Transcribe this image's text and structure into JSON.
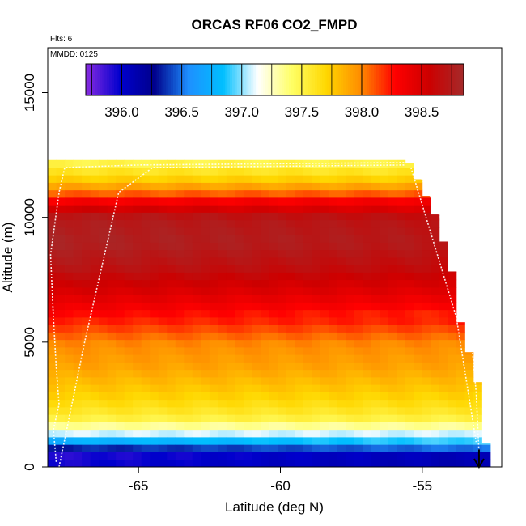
{
  "chart_data": {
    "type": "heatmap",
    "title": "ORCAS RF06 CO2_FMPD",
    "annotations": {
      "flights": "Flts: 6",
      "date": "MMDD: 0125"
    },
    "xlabel": "Latitude (deg N)",
    "ylabel": "Altitude (m)",
    "xlim": [
      -68.2,
      -52.2
    ],
    "ylim": [
      0,
      16800
    ],
    "x_ticks": [
      -65,
      -60,
      -55
    ],
    "x_tick_labels": [
      "-65",
      "-60",
      "-55"
    ],
    "y_ticks": [
      0,
      5000,
      10000,
      15000
    ],
    "y_tick_labels": [
      "0",
      "5000",
      "10000",
      "15000"
    ],
    "colorbar": {
      "range": [
        395.7,
        398.85
      ],
      "ticks": [
        396.0,
        396.5,
        397.0,
        397.5,
        398.0,
        398.5
      ],
      "tick_labels": [
        "396.0",
        "396.5",
        "397.0",
        "397.5",
        "398.0",
        "398.5"
      ],
      "colors": [
        "#8a2be2",
        "#0000cd",
        "#00008b",
        "#1e90ff",
        "#00bfff",
        "#ffffff",
        "#ffff66",
        "#ffd700",
        "#ff8c00",
        "#ff0000",
        "#cc0000",
        "#a52a2a"
      ],
      "placement": "top-inside"
    },
    "grid": false,
    "altitude_profile": [
      {
        "z": 0,
        "value": 396.0
      },
      {
        "z": 400,
        "value": 395.85
      },
      {
        "z": 800,
        "value": 396.4
      },
      {
        "z": 1200,
        "value": 396.95
      },
      {
        "z": 1600,
        "value": 397.3
      },
      {
        "z": 2000,
        "value": 397.55
      },
      {
        "z": 3000,
        "value": 397.75
      },
      {
        "z": 4000,
        "value": 397.9
      },
      {
        "z": 5000,
        "value": 398.0
      },
      {
        "z": 6000,
        "value": 398.25
      },
      {
        "z": 7000,
        "value": 398.5
      },
      {
        "z": 8000,
        "value": 398.7
      },
      {
        "z": 9000,
        "value": 398.8
      },
      {
        "z": 10000,
        "value": 398.75
      },
      {
        "z": 10500,
        "value": 398.45
      },
      {
        "z": 11000,
        "value": 398.05
      },
      {
        "z": 11500,
        "value": 397.75
      },
      {
        "z": 12000,
        "value": 397.55
      },
      {
        "z": 12300,
        "value": 397.45
      }
    ],
    "data_extent": [
      {
        "lat": -68.2,
        "alt_top": 12300
      },
      {
        "lat": -55.5,
        "alt_top": 12300
      },
      {
        "lat": -55.0,
        "alt_top": 11200
      },
      {
        "lat": -54.6,
        "alt_top": 10300
      },
      {
        "lat": -54.3,
        "alt_top": 9200
      },
      {
        "lat": -54.0,
        "alt_top": 8200
      },
      {
        "lat": -53.7,
        "alt_top": 6000
      },
      {
        "lat": -53.4,
        "alt_top": 4800
      },
      {
        "lat": -53.0,
        "alt_top": 3200
      },
      {
        "lat": -52.7,
        "alt_top": 500
      }
    ],
    "flight_tracks": [
      {
        "points": [
          [
            -67.9,
            200
          ],
          [
            -68.0,
            1500
          ],
          [
            -67.8,
            2500
          ],
          [
            -67.9,
            4000
          ],
          [
            -68.0,
            6000
          ],
          [
            -68.1,
            8500
          ],
          [
            -67.8,
            11000
          ],
          [
            -67.6,
            12000
          ],
          [
            -65.0,
            12100
          ],
          [
            -55.3,
            12200
          ],
          [
            -53.5,
            8000
          ],
          [
            -53.1,
            3000
          ],
          [
            -53.0,
            500
          ]
        ]
      },
      {
        "points": [
          [
            -67.8,
            0
          ],
          [
            -66.9,
            5000
          ],
          [
            -65.7,
            11000
          ],
          [
            -64.5,
            12000
          ],
          [
            -55.6,
            12100
          ]
        ]
      },
      {
        "points": [
          [
            -55.4,
            12000
          ],
          [
            -53.8,
            6000
          ],
          [
            -53.1,
            1000
          ]
        ]
      }
    ],
    "arrow_marker": {
      "lat": -53.0,
      "alt_from": 700,
      "alt_to": 0
    }
  }
}
